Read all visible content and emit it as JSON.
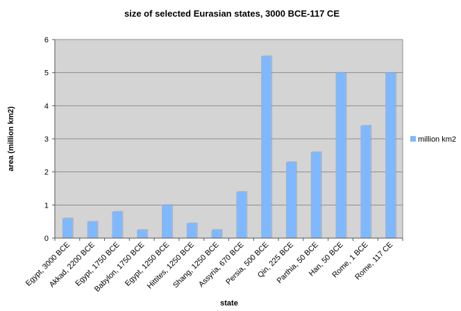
{
  "chart_data": {
    "type": "bar",
    "title": "size of selected Eurasian states, 3000 BCE-117 CE",
    "xlabel": "state",
    "ylabel": "area (million km2)",
    "ylim": [
      0,
      6
    ],
    "yticks": [
      0,
      1,
      2,
      3,
      4,
      5,
      6
    ],
    "grid": true,
    "legend_position": "right",
    "categories": [
      "Egypt, 3000 BCE",
      "Akkad, 2200 BCE",
      "Egypt, 1750 BCE",
      "Babylon, 1750 BCE",
      "Egypt, 1250 BCE",
      "Hittites, 1250 BCE",
      "Shang, 1250 BCE",
      "Assyria, 670 BCE",
      "Persia, 500 BCE",
      "Qin, 225 BCE",
      "Parthia, 50 BCE",
      "Han, 50 BCE",
      "Rome, 1 BCE",
      "Rome, 117 CE"
    ],
    "series": [
      {
        "name": "million km2",
        "values": [
          0.6,
          0.5,
          0.8,
          0.25,
          1.0,
          0.45,
          0.25,
          1.4,
          5.5,
          2.3,
          2.6,
          5.0,
          3.4,
          5.0
        ]
      }
    ],
    "colors": {
      "bar": "#7fb8ff",
      "bar_shadow": "#9a9a9a",
      "plot_bg": "#d4d4d4",
      "gridline": "#8c8c8c",
      "axis": "#555555"
    }
  }
}
